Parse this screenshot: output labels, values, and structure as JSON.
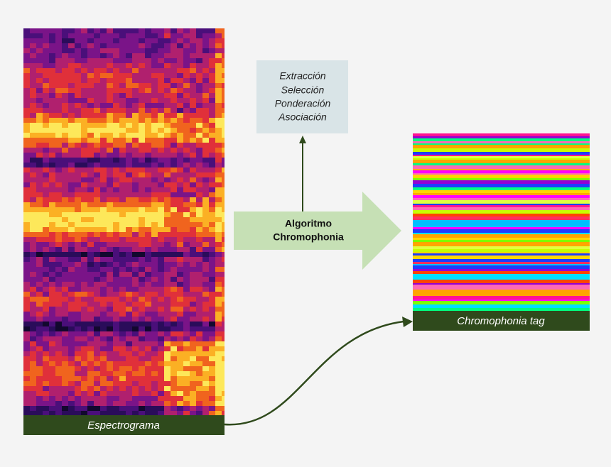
{
  "process_box": {
    "lines": [
      "Extracción",
      "Selección",
      "Ponderación",
      "Asociación"
    ]
  },
  "arrow": {
    "lines": [
      "Algoritmo",
      "Chromophonia"
    ]
  },
  "spectrogram": {
    "caption": "Espectrograma"
  },
  "tag": {
    "caption": "Chromophonia tag"
  }
}
